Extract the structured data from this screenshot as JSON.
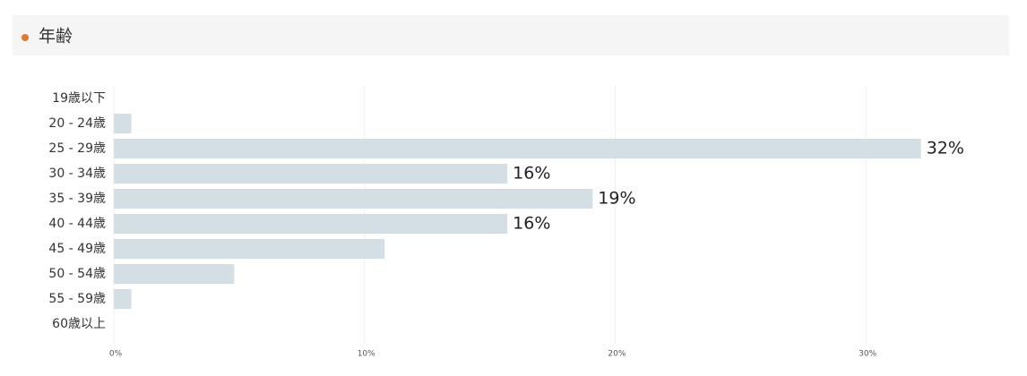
{
  "chart_data": {
    "type": "bar",
    "orientation": "horizontal",
    "title": "年齢",
    "categories": [
      "19歳以下",
      "20 - 24歳",
      "25 - 29歳",
      "30 - 34歳",
      "35 - 39歳",
      "40 - 44歳",
      "45 - 49歳",
      "50 - 54歳",
      "55 - 59歳",
      "60歳以上"
    ],
    "values": [
      0,
      0.7,
      32.2,
      15.7,
      19.1,
      15.7,
      10.8,
      4.8,
      0.7,
      0
    ],
    "value_labels": [
      null,
      null,
      "32%",
      "16%",
      "19%",
      "16%",
      null,
      null,
      null,
      null
    ],
    "color": "#d3dee5",
    "xlim": [
      0,
      36
    ],
    "xticks": [
      {
        "value": 0,
        "label": "0%"
      },
      {
        "value": 10,
        "label": "10%"
      },
      {
        "value": 20,
        "label": "20%"
      },
      {
        "value": 30,
        "label": "30%"
      }
    ],
    "grid": true
  }
}
